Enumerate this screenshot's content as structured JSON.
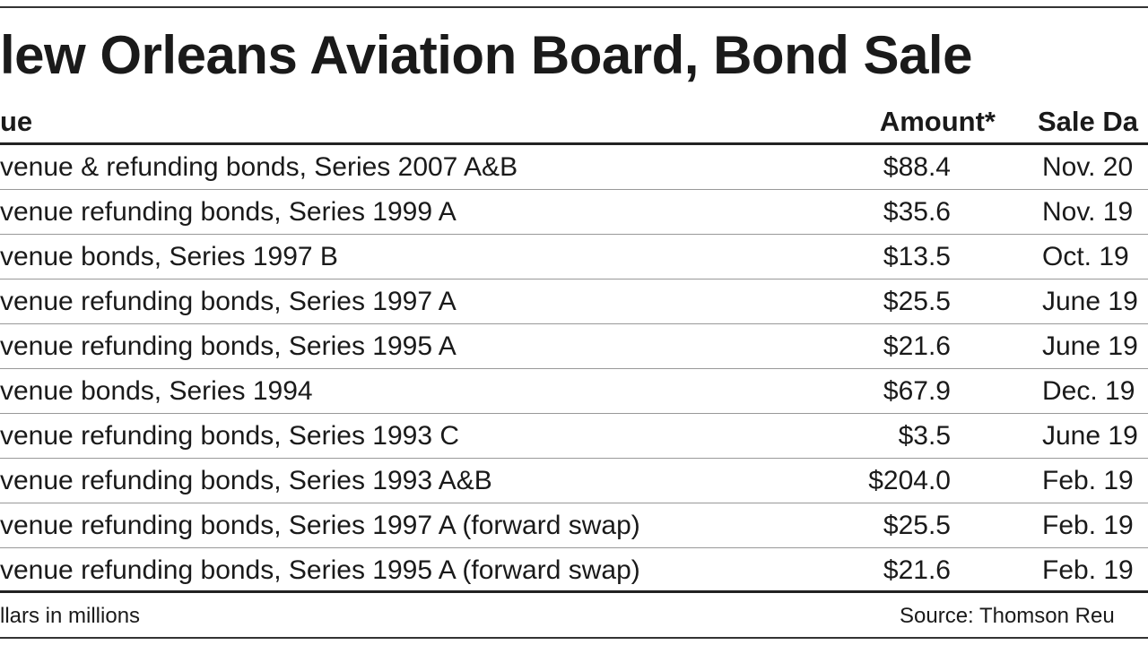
{
  "title": "lew Orleans Aviation Board, Bond Sale",
  "table": {
    "header": [
      "ue",
      "Amount*",
      "Sale Da"
    ],
    "rows": [
      [
        "venue & refunding bonds, Series 2007 A&B",
        "$88.4",
        "Nov. 20"
      ],
      [
        "venue refunding bonds, Series 1999 A",
        "$35.6",
        "Nov. 19"
      ],
      [
        "venue bonds, Series 1997 B",
        "$13.5",
        "Oct. 19"
      ],
      [
        "venue refunding bonds, Series 1997 A",
        "$25.5",
        "June 19"
      ],
      [
        "venue refunding bonds, Series 1995 A",
        "$21.6",
        "June 19"
      ],
      [
        "venue bonds, Series 1994",
        "$67.9",
        "Dec. 19"
      ],
      [
        "venue refunding bonds, Series 1993 C",
        "$3.5",
        "June 19"
      ],
      [
        "venue refunding bonds, Series 1993 A&B",
        "$204.0",
        "Feb. 19"
      ],
      [
        "venue refunding bonds, Series 1997 A (forward swap)",
        "$25.5",
        "Feb. 19"
      ],
      [
        "venue refunding bonds, Series 1995 A (forward swap)",
        "$21.6",
        "Feb. 19"
      ]
    ]
  },
  "footer": {
    "note": "llars in millions",
    "source": "Source: Thomson Reu"
  }
}
